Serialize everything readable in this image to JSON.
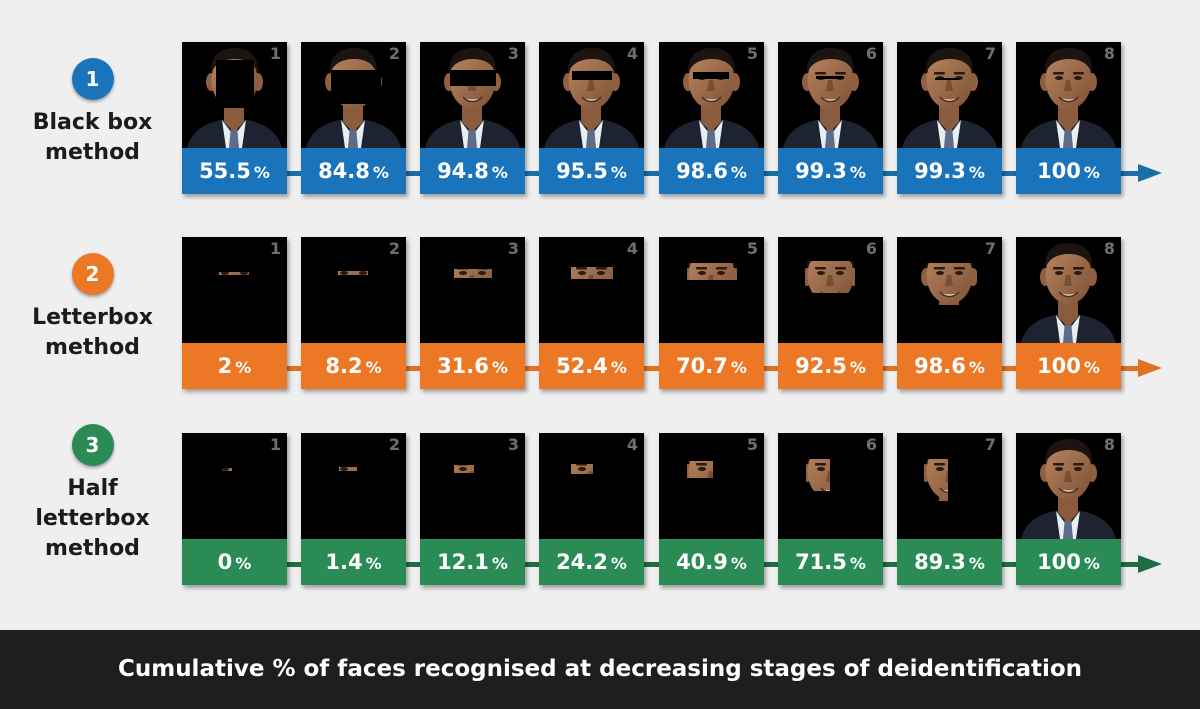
{
  "methods": [
    {
      "number": "1",
      "label_lines": [
        "Black box",
        "method"
      ],
      "color": "#1a74bc",
      "arrow_color": "#1c6ea6",
      "stages": [
        {
          "num": "1",
          "value": "55.5",
          "unit": "%"
        },
        {
          "num": "2",
          "value": "84.8",
          "unit": "%"
        },
        {
          "num": "3",
          "value": "94.8",
          "unit": "%"
        },
        {
          "num": "4",
          "value": "95.5",
          "unit": "%"
        },
        {
          "num": "5",
          "value": "98.6",
          "unit": "%"
        },
        {
          "num": "6",
          "value": "99.3",
          "unit": "%"
        },
        {
          "num": "7",
          "value": "99.3",
          "unit": "%"
        },
        {
          "num": "8",
          "value": "100",
          "unit": "%"
        }
      ]
    },
    {
      "number": "2",
      "label_lines": [
        "Letterbox",
        "method"
      ],
      "color": "#ec7724",
      "arrow_color": "#e07121",
      "stages": [
        {
          "num": "1",
          "value": "2",
          "unit": "%"
        },
        {
          "num": "2",
          "value": "8.2",
          "unit": "%"
        },
        {
          "num": "3",
          "value": "31.6",
          "unit": "%"
        },
        {
          "num": "4",
          "value": "52.4",
          "unit": "%"
        },
        {
          "num": "5",
          "value": "70.7",
          "unit": "%"
        },
        {
          "num": "6",
          "value": "92.5",
          "unit": "%"
        },
        {
          "num": "7",
          "value": "98.6",
          "unit": "%"
        },
        {
          "num": "8",
          "value": "100",
          "unit": "%"
        }
      ]
    },
    {
      "number": "3",
      "label_lines": [
        "Half",
        "letterbox",
        "method"
      ],
      "color": "#2a8b55",
      "arrow_color": "#1f6e43",
      "stages": [
        {
          "num": "1",
          "value": "0",
          "unit": "%"
        },
        {
          "num": "2",
          "value": "1.4",
          "unit": "%"
        },
        {
          "num": "3",
          "value": "12.1",
          "unit": "%"
        },
        {
          "num": "4",
          "value": "24.2",
          "unit": "%"
        },
        {
          "num": "5",
          "value": "40.9",
          "unit": "%"
        },
        {
          "num": "6",
          "value": "71.5",
          "unit": "%"
        },
        {
          "num": "7",
          "value": "89.3",
          "unit": "%"
        },
        {
          "num": "8",
          "value": "100",
          "unit": "%"
        }
      ]
    }
  ],
  "footer": {
    "caption": "Cumulative % of faces recognised at decreasing stages of deidentification"
  }
}
